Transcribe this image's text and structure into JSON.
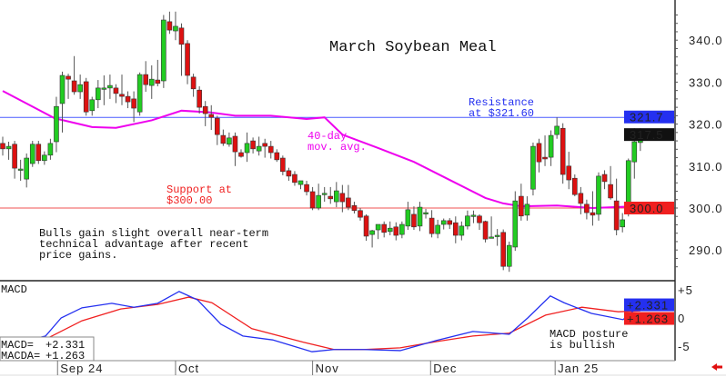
{
  "chart_data": {
    "type": "candlestick",
    "title": "March Soybean Meal",
    "ylim": [
      284,
      347
    ],
    "yticks": [
      "340.0",
      "330.0",
      "320.0",
      "310.0",
      "300.0",
      "290.0"
    ],
    "ytick_values": [
      340,
      330,
      320,
      310,
      300,
      290
    ],
    "x_labels": [
      {
        "label": "Sep 24",
        "index": 10.2
      },
      {
        "label": "Oct",
        "index": 30
      },
      {
        "label": "Nov",
        "index": 53
      },
      {
        "label": "Dec",
        "index": 72.8
      },
      {
        "label": "Jan 25",
        "index": 93.7
      }
    ],
    "ohlc": [
      [
        315.4,
        317.0,
        312.5,
        314.1
      ],
      [
        314.1,
        315.8,
        311.5,
        314.7
      ],
      [
        315.2,
        316.0,
        307.0,
        309.5
      ],
      [
        309.3,
        311.5,
        306.5,
        309.3
      ],
      [
        306.9,
        313.0,
        304.9,
        311.9
      ],
      [
        310.6,
        316.0,
        309.8,
        315.2
      ],
      [
        315.2,
        316.0,
        310.5,
        311.3
      ],
      [
        311.3,
        313.5,
        310.3,
        312.6
      ],
      [
        312.6,
        316.5,
        311.5,
        315.4
      ],
      [
        315.8,
        326.5,
        313.3,
        324.2
      ],
      [
        324.9,
        332.5,
        318.0,
        331.6
      ],
      [
        331.4,
        332.0,
        326.0,
        330.7
      ],
      [
        330.3,
        336.2,
        327.0,
        327.7
      ],
      [
        327.7,
        331.8,
        326.0,
        329.4
      ],
      [
        330.1,
        331.0,
        322.0,
        322.9
      ],
      [
        323.2,
        326.5,
        322.0,
        325.8
      ],
      [
        325.8,
        330.5,
        323.8,
        328.6
      ],
      [
        328.6,
        331.6,
        324.5,
        328.6
      ],
      [
        328.6,
        331.8,
        326.0,
        329.2
      ],
      [
        328.6,
        329.5,
        325.0,
        327.3
      ],
      [
        327.1,
        331.8,
        324.5,
        326.6
      ],
      [
        326.6,
        327.8,
        323.8,
        325.3
      ],
      [
        326.0,
        327.8,
        320.5,
        323.8
      ],
      [
        322.9,
        332.3,
        322.0,
        331.8
      ],
      [
        331.8,
        335.0,
        327.7,
        329.4
      ],
      [
        329.2,
        334.0,
        326.0,
        330.7
      ],
      [
        330.5,
        335.3,
        329.0,
        329.7
      ],
      [
        330.3,
        346.0,
        328.6,
        344.8
      ],
      [
        344.4,
        346.8,
        341.5,
        342.4
      ],
      [
        342.2,
        346.8,
        340.0,
        343.3
      ],
      [
        342.9,
        344.0,
        331.5,
        339.0
      ],
      [
        339.2,
        340.0,
        329.5,
        331.6
      ],
      [
        331.2,
        332.0,
        326.5,
        328.4
      ],
      [
        328.1,
        329.0,
        322.5,
        324.0
      ],
      [
        324.2,
        325.5,
        319.5,
        322.5
      ],
      [
        322.3,
        324.5,
        318.6,
        321.6
      ],
      [
        321.4,
        322.0,
        315.0,
        317.5
      ],
      [
        317.3,
        318.7,
        314.8,
        315.4
      ],
      [
        315.2,
        318.0,
        314.6,
        316.7
      ],
      [
        317.1,
        318.0,
        310.0,
        313.4
      ],
      [
        313.2,
        314.0,
        312.0,
        312.3
      ],
      [
        313.2,
        318.0,
        311.0,
        315.4
      ],
      [
        316.0,
        316.8,
        313.0,
        314.1
      ],
      [
        313.6,
        317.0,
        312.5,
        314.7
      ],
      [
        315.4,
        316.5,
        312.0,
        314.7
      ],
      [
        314.7,
        316.0,
        311.8,
        313.2
      ],
      [
        313.2,
        314.0,
        311.0,
        311.5
      ],
      [
        311.9,
        312.5,
        307.8,
        308.7
      ],
      [
        308.9,
        309.6,
        306.5,
        307.6
      ],
      [
        308.0,
        308.8,
        305.3,
        306.1
      ],
      [
        305.6,
        306.5,
        304.5,
        306.5
      ],
      [
        305.6,
        306.5,
        303.0,
        303.9
      ],
      [
        303.9,
        305.0,
        299.5,
        300.0
      ],
      [
        300.0,
        305.8,
        299.5,
        303.0
      ],
      [
        303.5,
        305.0,
        301.5,
        303.5
      ],
      [
        302.8,
        305.0,
        301.0,
        302.2
      ],
      [
        301.5,
        306.2,
        300.2,
        304.1
      ],
      [
        303.5,
        305.5,
        299.0,
        301.5
      ],
      [
        302.4,
        305.5,
        299.5,
        300.2
      ],
      [
        300.6,
        301.5,
        298.7,
        299.4
      ],
      [
        299.4,
        300.0,
        297.0,
        297.8
      ],
      [
        298.1,
        298.5,
        292.2,
        293.3
      ],
      [
        293.7,
        294.8,
        290.6,
        294.6
      ],
      [
        294.8,
        295.8,
        292.6,
        296.1
      ],
      [
        296.1,
        296.8,
        293.0,
        294.2
      ],
      [
        294.4,
        296.8,
        293.5,
        295.2
      ],
      [
        295.5,
        296.6,
        292.3,
        293.5
      ],
      [
        293.7,
        296.8,
        292.8,
        296.1
      ],
      [
        295.7,
        301.5,
        294.8,
        299.6
      ],
      [
        298.5,
        300.4,
        294.8,
        295.5
      ],
      [
        295.7,
        301.5,
        294.5,
        300.2
      ],
      [
        298.9,
        299.8,
        297.5,
        298.9
      ],
      [
        297.6,
        299.5,
        293.0,
        293.9
      ],
      [
        293.9,
        297.2,
        292.8,
        295.9
      ],
      [
        296.1,
        297.5,
        294.9,
        297.0
      ],
      [
        297.0,
        297.6,
        295.0,
        296.1
      ],
      [
        296.5,
        298.0,
        291.6,
        293.5
      ],
      [
        293.5,
        296.8,
        292.3,
        295.7
      ],
      [
        295.7,
        299.4,
        294.9,
        298.1
      ],
      [
        298.3,
        299.4,
        296.4,
        298.3
      ],
      [
        298.1,
        298.5,
        294.8,
        296.5
      ],
      [
        296.8,
        297.0,
        291.8,
        292.6
      ],
      [
        293.1,
        298.0,
        293.0,
        293.1
      ],
      [
        293.5,
        295.0,
        291.0,
        293.5
      ],
      [
        294.2,
        294.9,
        285.2,
        286.1
      ],
      [
        286.1,
        292.0,
        284.8,
        291.1
      ],
      [
        290.7,
        304.0,
        289.8,
        301.7
      ],
      [
        302.8,
        305.8,
        297.0,
        298.1
      ],
      [
        298.3,
        302.8,
        297.0,
        300.9
      ],
      [
        304.5,
        315.6,
        303.0,
        314.7
      ],
      [
        315.4,
        316.5,
        308.5,
        311.0
      ],
      [
        312.1,
        317.3,
        310.0,
        311.7
      ],
      [
        312.1,
        318.5,
        310.0,
        317.3
      ],
      [
        317.5,
        321.6,
        316.5,
        319.5
      ],
      [
        319.0,
        320.2,
        305.8,
        308.0
      ],
      [
        310.0,
        313.4,
        304.5,
        306.7
      ],
      [
        307.1,
        308.0,
        302.8,
        303.2
      ],
      [
        303.5,
        305.0,
        298.5,
        301.1
      ],
      [
        300.9,
        302.0,
        297.3,
        298.9
      ],
      [
        298.9,
        304.0,
        295.8,
        298.3
      ],
      [
        298.5,
        308.5,
        297.0,
        307.6
      ],
      [
        308.0,
        309.0,
        304.5,
        306.3
      ],
      [
        305.6,
        310.0,
        302.0,
        302.4
      ],
      [
        301.7,
        307.0,
        293.5,
        294.8
      ],
      [
        295.5,
        298.8,
        294.2,
        297.2
      ],
      [
        298.9,
        311.8,
        298.0,
        311.3
      ],
      [
        311.0,
        319.0,
        307.0,
        315.8
      ],
      [
        315.6,
        319.0,
        313.6,
        317.5
      ]
    ],
    "ma40": {
      "label": "40-day\nmov. avg.",
      "label_lines": [
        "40-day",
        "mov. avg."
      ],
      "points": [
        [
          1,
          327.9
        ],
        [
          9.7,
          321.4
        ],
        [
          16,
          319.3
        ],
        [
          20,
          319.1
        ],
        [
          26,
          320.9
        ],
        [
          31,
          323.2
        ],
        [
          35.7,
          322.8
        ],
        [
          40,
          322.0
        ],
        [
          46,
          322.0
        ],
        [
          52,
          321.2
        ],
        [
          55,
          321.6
        ],
        [
          58,
          317.5
        ],
        [
          64,
          314.3
        ],
        [
          70,
          311.0
        ],
        [
          76,
          306.7
        ],
        [
          82,
          302.4
        ],
        [
          85,
          301.1
        ],
        [
          88,
          300.4
        ],
        [
          94,
          300.6
        ],
        [
          100,
          300.0
        ],
        [
          107,
          300.4
        ]
      ]
    },
    "resistance": {
      "value": 321.6,
      "label_lines": [
        "Resistance",
        "at $321.60"
      ]
    },
    "support": {
      "value": 300.0,
      "label_lines": [
        "Support at",
        "$300.00"
      ]
    },
    "note_lines": [
      "Bulls gain slight overall near-term",
      "technical advantage after recent",
      "price gains."
    ],
    "price_tags": [
      {
        "text": "321.7",
        "value": 321.7,
        "color": "#2430f0"
      },
      {
        "text": "317.5",
        "value": 317.5,
        "color": "#111111"
      },
      {
        "text": "300.0",
        "value": 300.0,
        "color": "#f02020"
      }
    ],
    "macd": {
      "title": "MACD",
      "ylim": [
        -7.5,
        6.5
      ],
      "yticks": [
        "+5",
        "0",
        "-5"
      ],
      "ytick_values": [
        5,
        0,
        -5
      ],
      "macd_points": [
        [
          1,
          -3.5
        ],
        [
          7,
          -3.5
        ],
        [
          8.2,
          -3.2
        ],
        [
          10.8,
          0
        ],
        [
          14.3,
          1.8
        ],
        [
          19.3,
          2.6
        ],
        [
          23,
          1.9
        ],
        [
          27,
          2.6
        ],
        [
          30.6,
          4.7
        ],
        [
          33.7,
          3.2
        ],
        [
          37.6,
          -1.1
        ],
        [
          41.3,
          -3.2
        ],
        [
          46.3,
          -3.9
        ],
        [
          52.9,
          -6.0
        ],
        [
          56.6,
          -5.6
        ],
        [
          61.6,
          -5.6
        ],
        [
          67.7,
          -5.8
        ],
        [
          73.8,
          -4.0
        ],
        [
          79.9,
          -2.4
        ],
        [
          86,
          -2.9
        ],
        [
          89.1,
          0
        ],
        [
          92.9,
          3.9
        ],
        [
          95.2,
          2.7
        ],
        [
          99.8,
          0.8
        ],
        [
          105.1,
          -0.3
        ],
        [
          108,
          2.331
        ]
      ],
      "signal_points": [
        [
          8.7,
          -3.5
        ],
        [
          14.3,
          -0.5
        ],
        [
          20.8,
          1.6
        ],
        [
          27,
          2.4
        ],
        [
          32.2,
          3.7
        ],
        [
          36.1,
          2.7
        ],
        [
          42.8,
          -1.9
        ],
        [
          51.4,
          -4.3
        ],
        [
          56.6,
          -5.6
        ],
        [
          61.6,
          -5.6
        ],
        [
          67.7,
          -5.3
        ],
        [
          73.8,
          -4.2
        ],
        [
          79.9,
          -3.2
        ],
        [
          86,
          -2.7
        ],
        [
          92.1,
          0.5
        ],
        [
          98.2,
          1.9
        ],
        [
          104.3,
          1.1
        ],
        [
          108,
          1.263
        ]
      ],
      "legend": [
        {
          "label": "MACD=",
          "value": "+2.331"
        },
        {
          "label": "MACDA=",
          "value": "+1.263"
        }
      ],
      "tags": [
        {
          "text": "+2.331",
          "value": 2.331,
          "color": "#2430f0"
        },
        {
          "text": "+1.263",
          "value": 1.263,
          "color": "#f02020"
        }
      ],
      "note_lines": [
        "MACD posture",
        "is bullish"
      ]
    },
    "colors": {
      "up": "#22cc22",
      "down": "#dd1111",
      "ma": "#ee00ee",
      "resistance": "#4a5cff",
      "support": "#f05050",
      "macd": "#2430f0",
      "signal": "#f02020"
    }
  }
}
